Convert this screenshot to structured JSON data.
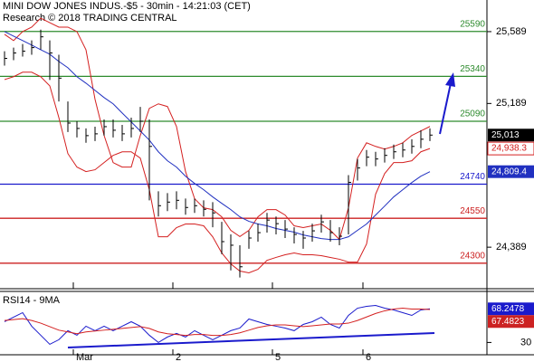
{
  "chart_data": [
    {
      "type": "ohlc",
      "title": "MINI DOW JONES INDUS.-$5 - 30min - 14:21:03 (CET)",
      "subtitle": "Research © 2018 TRADING CENTRAL",
      "categories": [
        null,
        null,
        null,
        null,
        null,
        null,
        null,
        null,
        "Mar",
        null,
        null,
        null,
        null,
        null,
        null,
        null,
        null,
        null,
        null,
        "2",
        null,
        null,
        null,
        null,
        null,
        null,
        null,
        null,
        null,
        null,
        "5",
        null,
        null,
        null,
        null,
        null,
        null,
        null,
        null,
        null,
        "6",
        null,
        null,
        null,
        null,
        null,
        null,
        null
      ],
      "high": [
        25480,
        25500,
        25520,
        25540,
        25600,
        25540,
        25460,
        25200,
        25090,
        25050,
        25060,
        25100,
        25100,
        25070,
        25110,
        25170,
        25100,
        24700,
        24690,
        24700,
        24660,
        24660,
        24650,
        24640,
        24530,
        24460,
        24400,
        24480,
        24520,
        24580,
        24560,
        24540,
        24500,
        24480,
        24520,
        24570,
        24540,
        24500,
        24790,
        24880,
        24930,
        24920,
        24940,
        24960,
        24970,
        24990,
        25040,
        25050
      ],
      "low": [
        25400,
        25430,
        25450,
        25460,
        25490,
        25320,
        25200,
        25030,
        25000,
        24970,
        24980,
        25010,
        25000,
        24980,
        25000,
        25030,
        24650,
        24560,
        24590,
        24600,
        24570,
        24580,
        24560,
        24500,
        24350,
        24260,
        24220,
        24380,
        24420,
        24470,
        24460,
        24440,
        24410,
        24380,
        24420,
        24470,
        24420,
        24400,
        24460,
        24760,
        24840,
        24840,
        24860,
        24880,
        24890,
        24910,
        24940,
        24980
      ],
      "values": [
        25440,
        25470,
        25480,
        25500,
        25560,
        25470,
        25330,
        25080,
        25050,
        25010,
        25020,
        25060,
        25040,
        25020,
        25050,
        25090,
        24950,
        24620,
        24640,
        24650,
        24610,
        24620,
        24600,
        24580,
        24420,
        24400,
        24280,
        24440,
        24470,
        24540,
        24520,
        24490,
        24460,
        24440,
        24480,
        24530,
        24470,
        24450,
        24750,
        24830,
        24890,
        24880,
        24900,
        24920,
        24930,
        24950,
        24990,
        25013
      ],
      "value_labels": [
        null,
        null,
        null,
        null,
        null,
        null,
        null,
        null,
        null,
        null,
        null,
        null,
        null,
        null,
        null,
        null,
        null,
        null,
        null,
        null,
        null,
        null,
        null,
        null,
        null,
        null,
        null,
        null,
        null,
        null,
        null,
        null,
        null,
        null,
        null,
        null,
        null,
        null,
        null,
        null,
        null,
        null,
        null,
        null,
        null,
        null,
        null,
        "25,013"
      ],
      "color": "#000000",
      "series": [
        {
          "color": "#d42020",
          "values": [
            25574,
            25539,
            25589,
            25614,
            25664,
            25639,
            25614,
            25614,
            25589,
            25488,
            25212,
            25011,
            24860,
            24835,
            24835,
            25011,
            25162,
            25187,
            25172,
            25061,
            24810,
            24659,
            24608,
            24598,
            24558,
            24483,
            24448,
            24483,
            24558,
            24598,
            24598,
            24568,
            24508,
            24498,
            24508,
            24518,
            24483,
            24432,
            24608,
            24885,
            24970,
            24950,
            24935,
            24950,
            24970,
            25011,
            25036,
            25061
          ]
        },
        {
          "color": "#d42020",
          "values": [
            25322,
            25338,
            25363,
            25363,
            25338,
            25287,
            25111,
            24910,
            24835,
            24810,
            24820,
            24860,
            24900,
            24920,
            24920,
            24885,
            24709,
            24447,
            24447,
            24498,
            24518,
            24518,
            24508,
            24447,
            24357,
            24296,
            24256,
            24246,
            24266,
            24316,
            24332,
            24347,
            24357,
            24347,
            24347,
            24342,
            24332,
            24322,
            24306,
            24306,
            24407,
            24684,
            24799,
            24860,
            24860,
            24870,
            24920,
            24938.3
          ],
          "value_labels": [
            null,
            null,
            null,
            null,
            null,
            null,
            null,
            null,
            null,
            null,
            null,
            null,
            null,
            null,
            null,
            null,
            null,
            null,
            null,
            null,
            null,
            null,
            null,
            null,
            null,
            null,
            null,
            null,
            null,
            null,
            null,
            null,
            null,
            null,
            null,
            null,
            null,
            null,
            null,
            null,
            null,
            null,
            null,
            null,
            null,
            null,
            null,
            "24,938.3"
          ]
        },
        {
          "color": "#2030c0",
          "values": [
            25589,
            25564,
            25539,
            25514,
            25488,
            25463,
            25423,
            25388,
            25338,
            25302,
            25262,
            25222,
            25187,
            25136,
            25086,
            25036,
            24985,
            24920,
            24870,
            24835,
            24784,
            24744,
            24709,
            24669,
            24633,
            24598,
            24558,
            24533,
            24518,
            24508,
            24493,
            24483,
            24473,
            24457,
            24447,
            24437,
            24432,
            24432,
            24447,
            24483,
            24518,
            24568,
            24618,
            24669,
            24709,
            24749,
            24784,
            24809.4
          ],
          "value_labels": [
            null,
            null,
            null,
            null,
            null,
            null,
            null,
            null,
            null,
            null,
            null,
            null,
            null,
            null,
            null,
            null,
            null,
            null,
            null,
            null,
            null,
            null,
            null,
            null,
            null,
            null,
            null,
            null,
            null,
            null,
            null,
            null,
            null,
            null,
            null,
            null,
            null,
            null,
            null,
            null,
            null,
            null,
            null,
            null,
            null,
            null,
            null,
            "24,809.4"
          ]
        }
      ],
      "levels": [
        25590,
        25340,
        25090,
        24740,
        24550,
        24300
      ],
      "level_colors": [
        "#2e8b2e",
        "#2e8b2e",
        "#2e8b2e",
        "#1a1acc",
        "#cc2222",
        "#cc2222"
      ],
      "ylim": [
        24163,
        25765
      ],
      "yticks": [
        {
          "value": 24389,
          "label": "24,389"
        },
        {
          "value": 25189,
          "label": "25,189"
        },
        {
          "value": 25589,
          "label": "25,589"
        }
      ]
    },
    {
      "type": "line",
      "title": "RSI14 - 9MA",
      "series": [
        {
          "color": "#1a1acc",
          "values": [
            53.6,
            58.8,
            63.9,
            48.5,
            38.2,
            27.9,
            33.1,
            43.4,
            38.2,
            48.5,
            43.4,
            48.5,
            43.4,
            48.5,
            53.6,
            48.5,
            38.2,
            30,
            36.2,
            40.3,
            36.2,
            43.4,
            38.2,
            33.1,
            38.2,
            43.4,
            46.4,
            56.7,
            53.6,
            50.5,
            48.5,
            46.4,
            43.4,
            50.5,
            53.6,
            58.8,
            50.5,
            46.4,
            60.8,
            69,
            71.1,
            72.1,
            69,
            67,
            63.9,
            60.8,
            67,
            68.2478
          ]
        },
        {
          "color": "#d42020",
          "values": [
            55,
            56,
            57,
            55,
            52,
            48,
            44,
            42,
            40,
            42,
            43,
            44,
            45,
            46,
            47,
            48,
            46,
            42,
            40,
            39,
            38,
            39,
            39,
            38,
            38,
            39,
            41,
            44,
            47,
            49,
            50,
            50,
            49,
            48,
            49,
            50,
            51,
            51,
            52,
            55,
            59,
            63,
            66,
            68,
            69,
            68,
            68,
            67.4823
          ]
        }
      ],
      "ylim": [
        16,
        85
      ],
      "yticks": [
        30
      ]
    }
  ]
}
